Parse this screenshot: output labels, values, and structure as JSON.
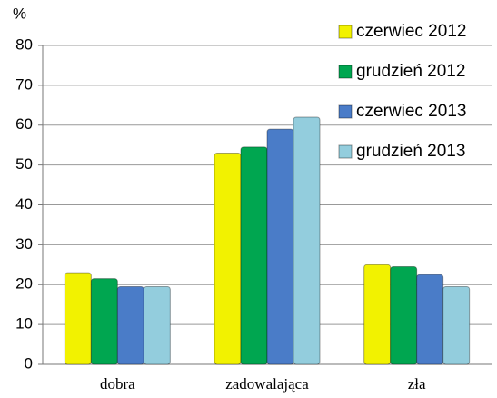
{
  "chart_data": {
    "type": "bar",
    "y_label": "%",
    "categories": [
      "dobra",
      "zadowalająca",
      "zła"
    ],
    "series": [
      {
        "name": "czerwiec 2012",
        "color": "#f2f200",
        "values": [
          23,
          53,
          25
        ]
      },
      {
        "name": "grudzień 2012",
        "color": "#00a650",
        "values": [
          21.5,
          54.5,
          24.5
        ]
      },
      {
        "name": "czerwiec 2013",
        "color": "#4a7cc8",
        "values": [
          19.5,
          59,
          22.5
        ]
      },
      {
        "name": "grudzień 2013",
        "color": "#93cddd",
        "values": [
          19.5,
          62,
          19.5
        ]
      }
    ],
    "ylim": [
      0,
      80
    ],
    "yticks": [
      0,
      10,
      20,
      30,
      40,
      50,
      60,
      70,
      80
    ],
    "grid": true,
    "legend": "top-right"
  }
}
